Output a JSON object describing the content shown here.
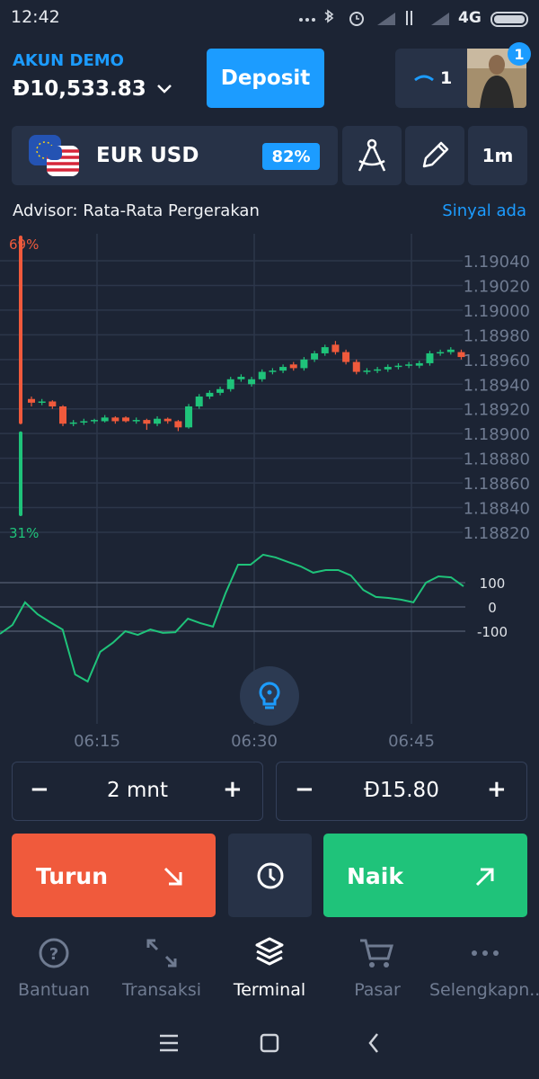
{
  "status_bar": {
    "time": "12:42",
    "network": "4G"
  },
  "header": {
    "account_label": "AKUN DEMO",
    "balance": "Đ10,533.83",
    "deposit": "Deposit",
    "trades_count": "1",
    "notification_badge": "1"
  },
  "asset": {
    "pair": "EUR USD",
    "payout": "82%",
    "timeframe": "1m"
  },
  "advisor": {
    "label": "Advisor: Rata-Rata Pergerakan",
    "signal": "Sinyal ada"
  },
  "sentiment": {
    "values": [
      69,
      31
    ],
    "value_labels": [
      "69%",
      "31%"
    ],
    "colors": [
      "#f05a3c",
      "#1fc37a"
    ]
  },
  "price_chart": {
    "type": "candlestick",
    "up_color": "#1fc37a",
    "down_color": "#f05a3c",
    "yticks": [
      {
        "value": 1.1904,
        "label": "1.19040"
      },
      {
        "value": 1.1902,
        "label": "1.19020"
      },
      {
        "value": 1.19,
        "label": "1.19000"
      },
      {
        "value": 1.1898,
        "label": "1.18980"
      },
      {
        "value": 1.1896,
        "label": "1.18960"
      },
      {
        "value": 1.1894,
        "label": "1.18940"
      },
      {
        "value": 1.1892,
        "label": "1.18920"
      },
      {
        "value": 1.189,
        "label": "1.18900"
      },
      {
        "value": 1.1888,
        "label": "1.18880"
      },
      {
        "value": 1.1886,
        "label": "1.18860"
      },
      {
        "value": 1.1884,
        "label": "1.18840"
      },
      {
        "value": 1.1882,
        "label": "1.18820"
      }
    ],
    "candles": [
      {
        "o": 1.18928,
        "h": 1.1893,
        "l": 1.18922,
        "c": 1.18925
      },
      {
        "o": 1.18925,
        "h": 1.18928,
        "l": 1.18923,
        "c": 1.18926
      },
      {
        "o": 1.18926,
        "h": 1.18927,
        "l": 1.1892,
        "c": 1.18922
      },
      {
        "o": 1.18922,
        "h": 1.18923,
        "l": 1.18906,
        "c": 1.18908
      },
      {
        "o": 1.18908,
        "h": 1.18911,
        "l": 1.18906,
        "c": 1.18909
      },
      {
        "o": 1.18909,
        "h": 1.18912,
        "l": 1.18907,
        "c": 1.1891
      },
      {
        "o": 1.1891,
        "h": 1.18912,
        "l": 1.18908,
        "c": 1.18911
      },
      {
        "o": 1.1891,
        "h": 1.18915,
        "l": 1.18909,
        "c": 1.18913
      },
      {
        "o": 1.18913,
        "h": 1.18914,
        "l": 1.18908,
        "c": 1.1891
      },
      {
        "o": 1.18913,
        "h": 1.18914,
        "l": 1.18909,
        "c": 1.1891
      },
      {
        "o": 1.1891,
        "h": 1.18913,
        "l": 1.18908,
        "c": 1.18911
      },
      {
        "o": 1.18911,
        "h": 1.18912,
        "l": 1.18903,
        "c": 1.18908
      },
      {
        "o": 1.18908,
        "h": 1.18914,
        "l": 1.18906,
        "c": 1.18912
      },
      {
        "o": 1.18912,
        "h": 1.18913,
        "l": 1.18908,
        "c": 1.1891
      },
      {
        "o": 1.1891,
        "h": 1.18911,
        "l": 1.18902,
        "c": 1.18905
      },
      {
        "o": 1.18905,
        "h": 1.18924,
        "l": 1.18904,
        "c": 1.18922
      },
      {
        "o": 1.18922,
        "h": 1.18932,
        "l": 1.1892,
        "c": 1.1893
      },
      {
        "o": 1.1893,
        "h": 1.18935,
        "l": 1.18928,
        "c": 1.18933
      },
      {
        "o": 1.18933,
        "h": 1.18938,
        "l": 1.18931,
        "c": 1.18936
      },
      {
        "o": 1.18936,
        "h": 1.18946,
        "l": 1.18934,
        "c": 1.18944
      },
      {
        "o": 1.18944,
        "h": 1.18948,
        "l": 1.18942,
        "c": 1.18946
      },
      {
        "o": 1.1894,
        "h": 1.18946,
        "l": 1.18938,
        "c": 1.18944
      },
      {
        "o": 1.18944,
        "h": 1.18952,
        "l": 1.18942,
        "c": 1.1895
      },
      {
        "o": 1.1895,
        "h": 1.18953,
        "l": 1.18948,
        "c": 1.18951
      },
      {
        "o": 1.18951,
        "h": 1.18956,
        "l": 1.18949,
        "c": 1.18954
      },
      {
        "o": 1.18956,
        "h": 1.18958,
        "l": 1.18951,
        "c": 1.18953
      },
      {
        "o": 1.18953,
        "h": 1.18962,
        "l": 1.18951,
        "c": 1.1896
      },
      {
        "o": 1.1896,
        "h": 1.18967,
        "l": 1.18958,
        "c": 1.18965
      },
      {
        "o": 1.18965,
        "h": 1.18972,
        "l": 1.18963,
        "c": 1.1897
      },
      {
        "o": 1.18972,
        "h": 1.18975,
        "l": 1.18964,
        "c": 1.18966
      },
      {
        "o": 1.18966,
        "h": 1.18968,
        "l": 1.18956,
        "c": 1.18958
      },
      {
        "o": 1.18958,
        "h": 1.1896,
        "l": 1.18948,
        "c": 1.1895
      },
      {
        "o": 1.1895,
        "h": 1.18953,
        "l": 1.18948,
        "c": 1.18951
      },
      {
        "o": 1.18951,
        "h": 1.18954,
        "l": 1.18949,
        "c": 1.18952
      },
      {
        "o": 1.18952,
        "h": 1.18956,
        "l": 1.1895,
        "c": 1.18954
      },
      {
        "o": 1.18954,
        "h": 1.18957,
        "l": 1.18952,
        "c": 1.18955
      },
      {
        "o": 1.18955,
        "h": 1.18958,
        "l": 1.18953,
        "c": 1.18956
      },
      {
        "o": 1.18955,
        "h": 1.18959,
        "l": 1.18953,
        "c": 1.18957
      },
      {
        "o": 1.18957,
        "h": 1.18967,
        "l": 1.18955,
        "c": 1.18965
      },
      {
        "o": 1.18965,
        "h": 1.18968,
        "l": 1.18963,
        "c": 1.18966
      },
      {
        "o": 1.18966,
        "h": 1.1897,
        "l": 1.18964,
        "c": 1.18968
      },
      {
        "o": 1.18966,
        "h": 1.18968,
        "l": 1.1896,
        "c": 1.18962
      }
    ],
    "xticks": [
      "06:15",
      "06:30",
      "06:45"
    ]
  },
  "oscillator": {
    "type": "line",
    "color": "#1fc37a",
    "yticks": [
      100,
      0,
      -100
    ],
    "values": [
      -111,
      -74,
      19,
      -30,
      -63,
      -93,
      -278,
      -307,
      -185,
      -148,
      -100,
      -115,
      -93,
      -107,
      -104,
      -48,
      -67,
      -81,
      56,
      174,
      174,
      215,
      204,
      185,
      167,
      141,
      152,
      152,
      130,
      70,
      41,
      37,
      30,
      19,
      100,
      126,
      122,
      85
    ]
  },
  "trade_controls": {
    "duration": "2 mnt",
    "amount": "Đ15.80",
    "minus": "−",
    "plus": "+"
  },
  "actions": {
    "down": "Turun",
    "up": "Naik"
  },
  "bottom_nav": {
    "items": [
      "Bantuan",
      "Transaksi",
      "Terminal",
      "Pasar",
      "Selengkapn..."
    ]
  }
}
